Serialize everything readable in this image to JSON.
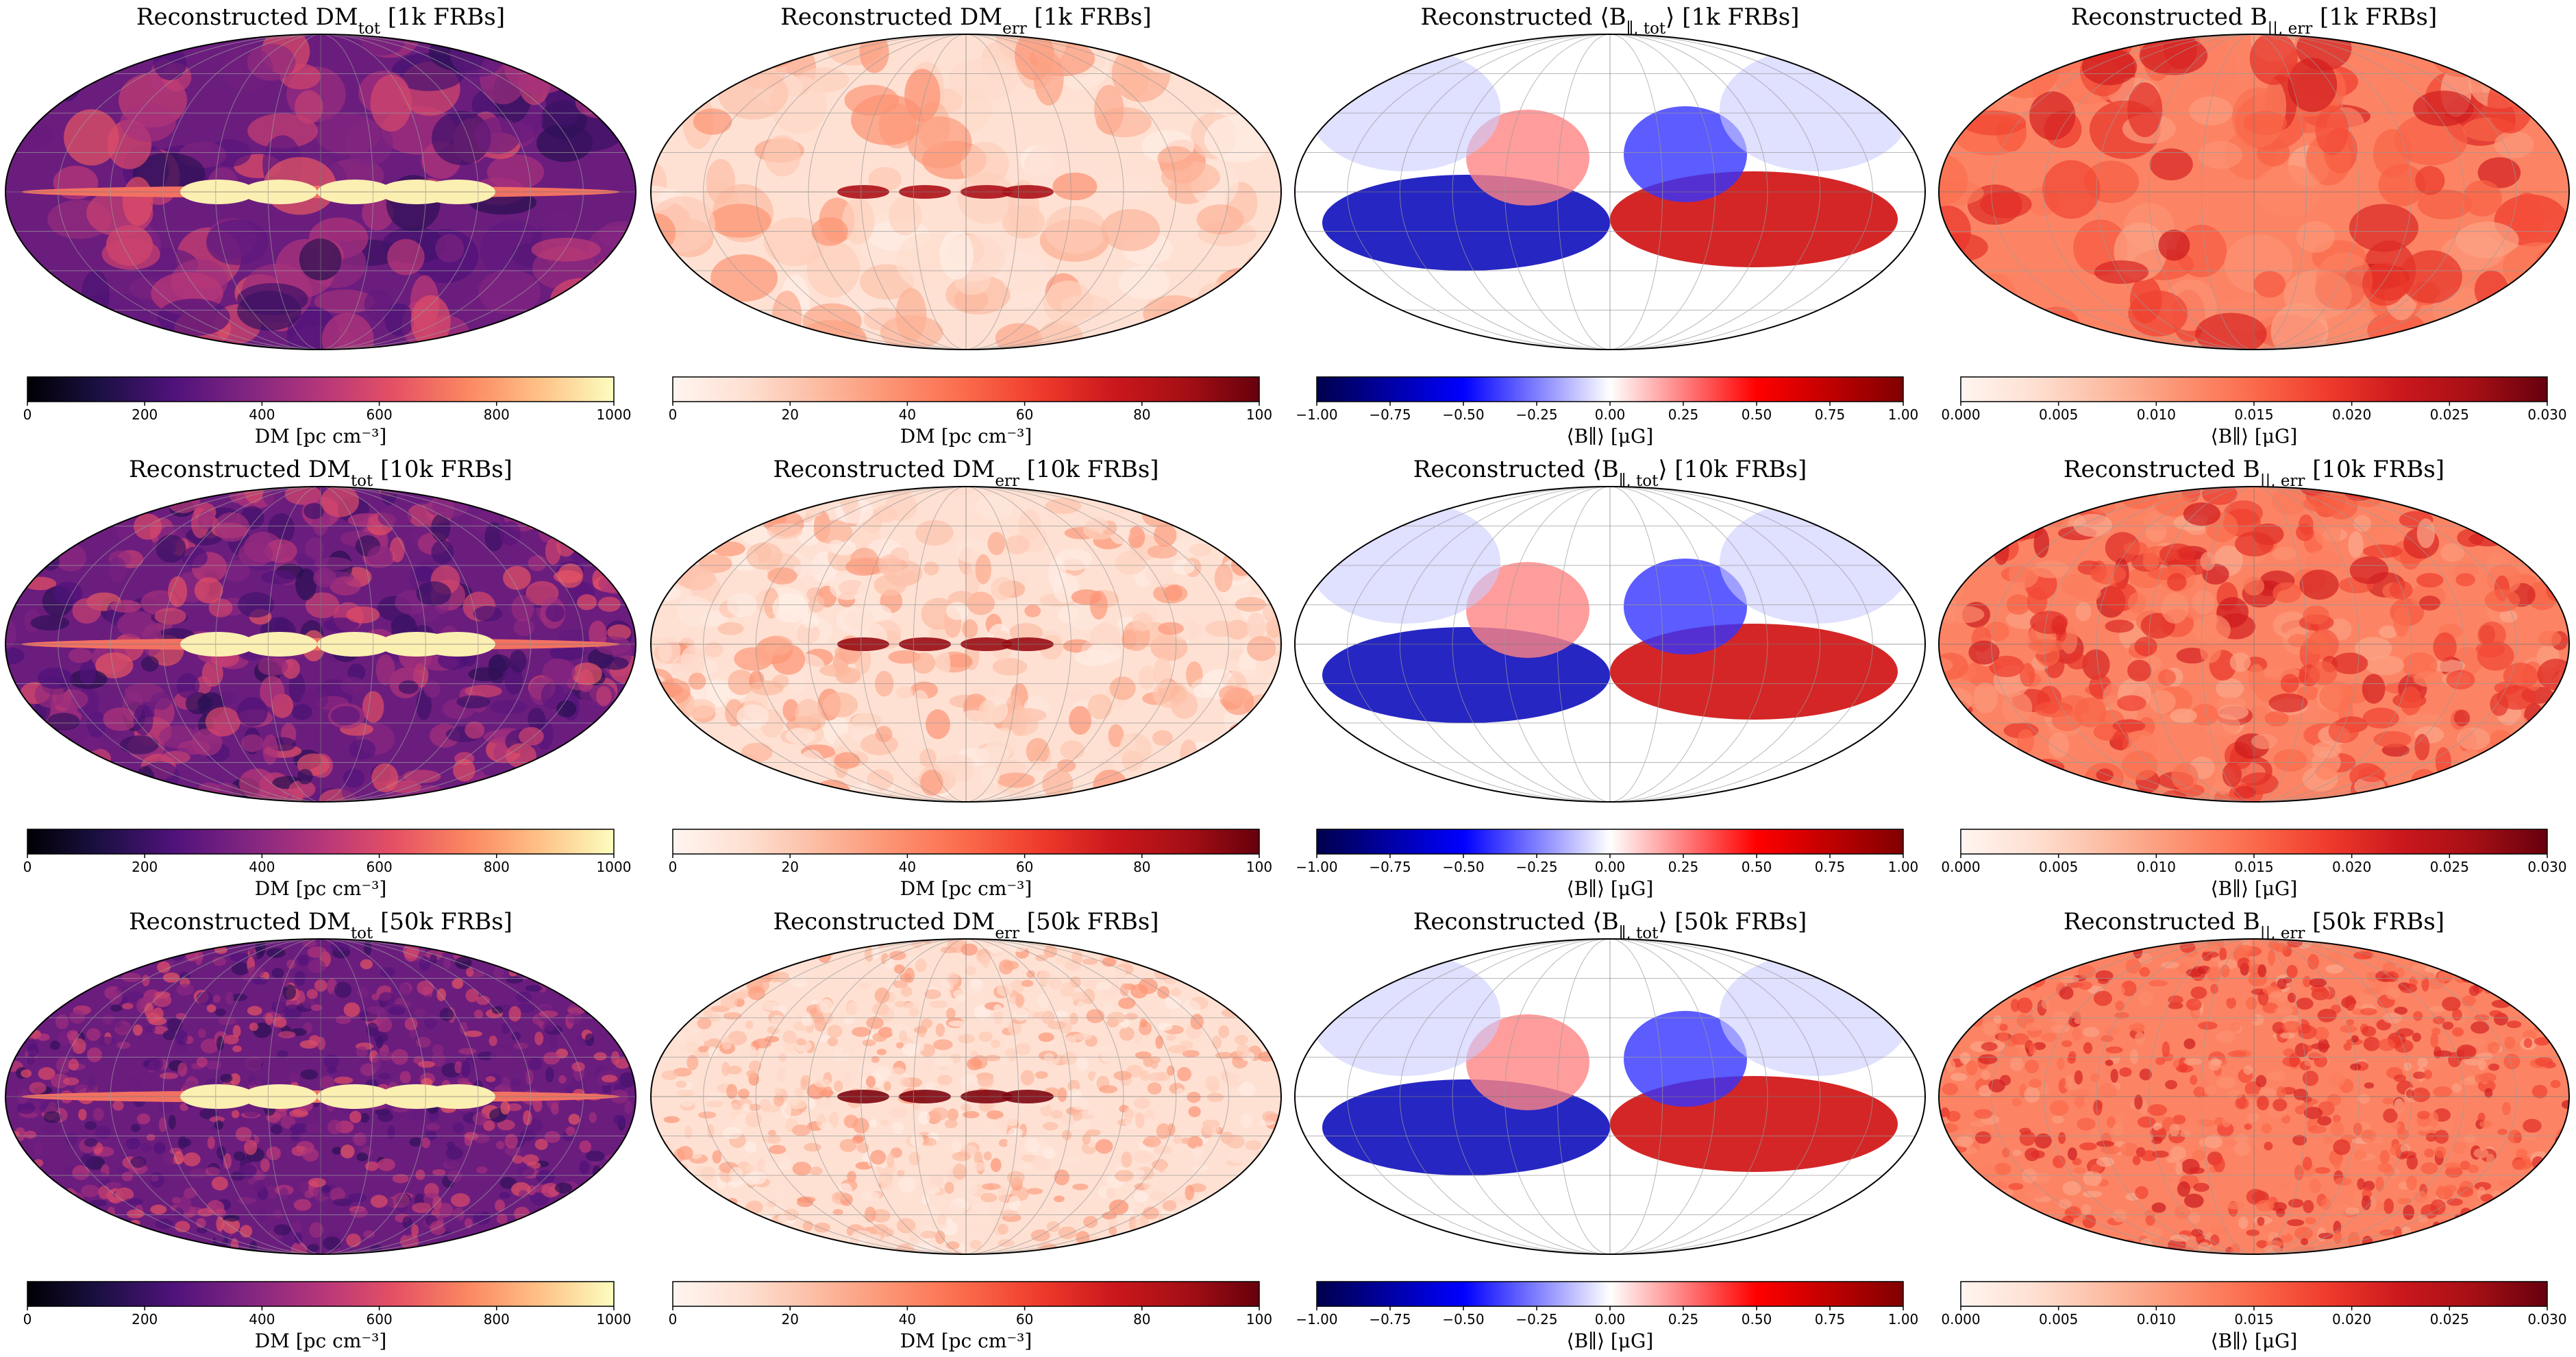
{
  "chart_data": [
    {
      "type": "heatmap",
      "panel": "dm-tot-1k",
      "title_main": "Reconstructed DM",
      "title_sub": "tot",
      "title_tail": " [1k FRBs]",
      "colormap": "magma",
      "range": [
        0,
        1000
      ],
      "ticks": [
        0,
        200,
        400,
        600,
        800,
        1000
      ],
      "tick_labels": [
        "0",
        "200",
        "400",
        "600",
        "800",
        "1000"
      ],
      "colorbar_label": "DM [pc cm⁻³]",
      "projection": "mollweide"
    },
    {
      "type": "heatmap",
      "panel": "dm-err-1k",
      "title_main": "Reconstructed DM",
      "title_sub": "err",
      "title_tail": " [1k FRBs]",
      "colormap": "reds",
      "range": [
        0,
        100
      ],
      "ticks": [
        0,
        20,
        40,
        60,
        80,
        100
      ],
      "tick_labels": [
        "0",
        "20",
        "40",
        "60",
        "80",
        "100"
      ],
      "colorbar_label": "DM [pc cm⁻³]",
      "projection": "mollweide"
    },
    {
      "type": "heatmap",
      "panel": "b-tot-1k",
      "title_main": "Reconstructed ⟨B",
      "title_sub": "∥, tot",
      "title_tail": "⟩ [1k FRBs]",
      "colormap": "seismic",
      "range": [
        -1,
        1
      ],
      "ticks": [
        -1,
        -0.75,
        -0.5,
        -0.25,
        0,
        0.25,
        0.5,
        0.75,
        1
      ],
      "tick_labels": [
        "−1.00",
        "−0.75",
        "−0.50",
        "−0.25",
        "0.00",
        "0.25",
        "0.50",
        "0.75",
        "1.00"
      ],
      "colorbar_label": "⟨B∥⟩ [μG]",
      "projection": "mollweide"
    },
    {
      "type": "heatmap",
      "panel": "b-err-1k",
      "title_main": "Reconstructed B",
      "title_sub": "||, err",
      "title_tail": " [1k FRBs]",
      "colormap": "reds",
      "range": [
        0,
        0.03
      ],
      "ticks": [
        0,
        0.005,
        0.01,
        0.015,
        0.02,
        0.025,
        0.03
      ],
      "tick_labels": [
        "0.000",
        "0.005",
        "0.010",
        "0.015",
        "0.020",
        "0.025",
        "0.030"
      ],
      "colorbar_label": "⟨B∥⟩ [μG]",
      "projection": "mollweide"
    },
    {
      "type": "heatmap",
      "panel": "dm-tot-10k",
      "title_main": "Reconstructed DM",
      "title_sub": "tot",
      "title_tail": " [10k FRBs]",
      "colormap": "magma",
      "range": [
        0,
        1000
      ],
      "ticks": [
        0,
        200,
        400,
        600,
        800,
        1000
      ],
      "tick_labels": [
        "0",
        "200",
        "400",
        "600",
        "800",
        "1000"
      ],
      "colorbar_label": "DM [pc cm⁻³]",
      "projection": "mollweide"
    },
    {
      "type": "heatmap",
      "panel": "dm-err-10k",
      "title_main": "Reconstructed DM",
      "title_sub": "err",
      "title_tail": " [10k FRBs]",
      "colormap": "reds",
      "range": [
        0,
        100
      ],
      "ticks": [
        0,
        20,
        40,
        60,
        80,
        100
      ],
      "tick_labels": [
        "0",
        "20",
        "40",
        "60",
        "80",
        "100"
      ],
      "colorbar_label": "DM [pc cm⁻³]",
      "projection": "mollweide"
    },
    {
      "type": "heatmap",
      "panel": "b-tot-10k",
      "title_main": "Reconstructed ⟨B",
      "title_sub": "∥, tot",
      "title_tail": "⟩ [10k FRBs]",
      "colormap": "seismic",
      "range": [
        -1,
        1
      ],
      "ticks": [
        -1,
        -0.75,
        -0.5,
        -0.25,
        0,
        0.25,
        0.5,
        0.75,
        1
      ],
      "tick_labels": [
        "−1.00",
        "−0.75",
        "−0.50",
        "−0.25",
        "0.00",
        "0.25",
        "0.50",
        "0.75",
        "1.00"
      ],
      "colorbar_label": "⟨B∥⟩ [μG]",
      "projection": "mollweide"
    },
    {
      "type": "heatmap",
      "panel": "b-err-10k",
      "title_main": "Reconstructed B",
      "title_sub": "||, err",
      "title_tail": " [10k FRBs]",
      "colormap": "reds",
      "range": [
        0,
        0.03
      ],
      "ticks": [
        0,
        0.005,
        0.01,
        0.015,
        0.02,
        0.025,
        0.03
      ],
      "tick_labels": [
        "0.000",
        "0.005",
        "0.010",
        "0.015",
        "0.020",
        "0.025",
        "0.030"
      ],
      "colorbar_label": "⟨B∥⟩ [μG]",
      "projection": "mollweide"
    },
    {
      "type": "heatmap",
      "panel": "dm-tot-50k",
      "title_main": "Reconstructed DM",
      "title_sub": "tot",
      "title_tail": " [50k FRBs]",
      "colormap": "magma",
      "range": [
        0,
        1000
      ],
      "ticks": [
        0,
        200,
        400,
        600,
        800,
        1000
      ],
      "tick_labels": [
        "0",
        "200",
        "400",
        "600",
        "800",
        "1000"
      ],
      "colorbar_label": "DM [pc cm⁻³]",
      "projection": "mollweide"
    },
    {
      "type": "heatmap",
      "panel": "dm-err-50k",
      "title_main": "Reconstructed DM",
      "title_sub": "err",
      "title_tail": " [50k FRBs]",
      "colormap": "reds",
      "range": [
        0,
        100
      ],
      "ticks": [
        0,
        20,
        40,
        60,
        80,
        100
      ],
      "tick_labels": [
        "0",
        "20",
        "40",
        "60",
        "80",
        "100"
      ],
      "colorbar_label": "DM [pc cm⁻³]",
      "projection": "mollweide"
    },
    {
      "type": "heatmap",
      "panel": "b-tot-50k",
      "title_main": "Reconstructed ⟨B",
      "title_sub": "∥, tot",
      "title_tail": "⟩ [50k FRBs]",
      "colormap": "seismic",
      "range": [
        -1,
        1
      ],
      "ticks": [
        -1,
        -0.75,
        -0.5,
        -0.25,
        0,
        0.25,
        0.5,
        0.75,
        1
      ],
      "tick_labels": [
        "−1.00",
        "−0.75",
        "−0.50",
        "−0.25",
        "0.00",
        "0.25",
        "0.50",
        "0.75",
        "1.00"
      ],
      "colorbar_label": "⟨B∥⟩ [μG]",
      "projection": "mollweide"
    },
    {
      "type": "heatmap",
      "panel": "b-err-50k",
      "title_main": "Reconstructed B",
      "title_sub": "||, err",
      "title_tail": " [50k FRBs]",
      "colormap": "reds",
      "range": [
        0,
        0.03
      ],
      "ticks": [
        0,
        0.005,
        0.01,
        0.015,
        0.02,
        0.025,
        0.03
      ],
      "tick_labels": [
        "0.000",
        "0.005",
        "0.010",
        "0.015",
        "0.020",
        "0.025",
        "0.030"
      ],
      "colorbar_label": "⟨B∥⟩ [μG]",
      "projection": "mollweide"
    }
  ],
  "colormaps": {
    "magma": [
      "#000004",
      "#1c1044",
      "#4f127b",
      "#812581",
      "#b5367a",
      "#e55064",
      "#fb8761",
      "#fec287",
      "#fcfdbf"
    ],
    "reds": [
      "#fff5f0",
      "#fee0d2",
      "#fcbba1",
      "#fc9272",
      "#fb6a4a",
      "#ef3b2c",
      "#cb181d",
      "#a50f15",
      "#67000d"
    ],
    "seismic": [
      "#00004c",
      "#0000ff",
      "#ffffff",
      "#ff0000",
      "#800000"
    ]
  }
}
